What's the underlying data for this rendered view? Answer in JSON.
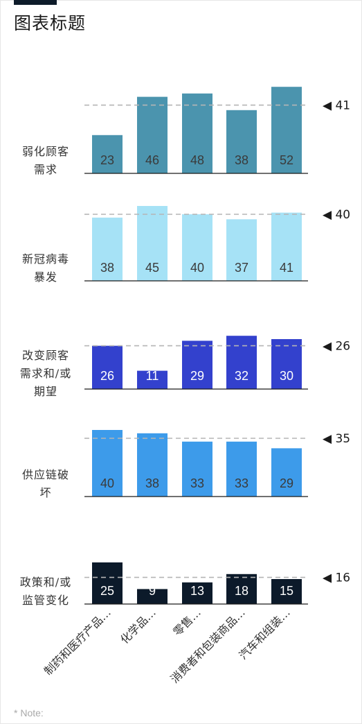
{
  "title": "图表标题",
  "note": "* Note:",
  "chart_data": {
    "type": "bar",
    "categories": [
      "制药和医疗产品…",
      "化学品…",
      "零售…",
      "消费者和包装商品…",
      "汽车和组装…"
    ],
    "panels": [
      {
        "label": [
          "弱化顾客",
          "需求"
        ],
        "values": [
          23,
          46,
          48,
          38,
          52
        ],
        "average": 41,
        "color": "#4b94ae"
      },
      {
        "label": [
          "新冠病毒",
          "暴发"
        ],
        "values": [
          38,
          45,
          40,
          37,
          41
        ],
        "average": 40,
        "color": "#a6e2f6"
      },
      {
        "label": [
          "改变顾客",
          "需求和/或",
          "期望"
        ],
        "values": [
          26,
          11,
          29,
          32,
          30
        ],
        "average": 26,
        "color": "#3341cd"
      },
      {
        "label": [
          "供应链破",
          "坏"
        ],
        "values": [
          40,
          38,
          33,
          33,
          29
        ],
        "average": 35,
        "color": "#3d9bea"
      },
      {
        "label": [
          "政策和/或",
          "监管变化"
        ],
        "values": [
          25,
          9,
          13,
          18,
          15
        ],
        "average": 16,
        "color": "#0c1a2a"
      }
    ],
    "average_marker": "◀",
    "average_line": "dashed"
  }
}
